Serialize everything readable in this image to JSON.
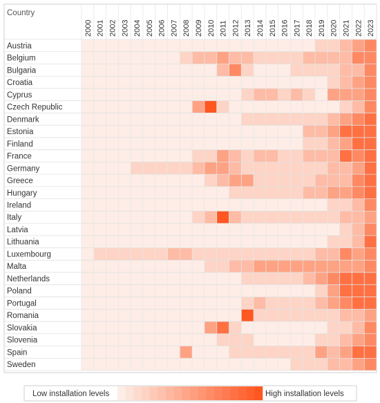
{
  "chart_data": {
    "type": "heatmap",
    "row_header": "Country",
    "columns": [
      "2000",
      "2001",
      "2002",
      "2003",
      "2004",
      "2005",
      "2006",
      "2007",
      "2008",
      "2009",
      "2010",
      "2011",
      "2012",
      "2013",
      "2014",
      "2015",
      "2016",
      "2017",
      "2018",
      "2019",
      "2020",
      "2021",
      "2022",
      "2023"
    ],
    "rows": [
      "Austria",
      "Belgium",
      "Bulgaria",
      "Croatia",
      "Cyprus",
      "Czech Republic",
      "Denmark",
      "Estonia",
      "Finland",
      "France",
      "Germany",
      "Greece",
      "Hungary",
      "Ireland",
      "Italy",
      "Latvia",
      "Lithuania",
      "Luxembourg",
      "Malta",
      "Netherlands",
      "Poland",
      "Portugal",
      "Romania",
      "Slovakia",
      "Slovenia",
      "Spain",
      "Sweden"
    ],
    "values": [
      [
        0,
        0,
        0,
        0,
        0,
        0,
        0,
        0,
        0,
        0,
        0,
        0,
        0,
        0,
        0,
        0,
        0,
        0,
        0,
        1,
        1,
        2,
        3,
        4
      ],
      [
        0,
        0,
        0,
        0,
        0,
        0,
        0,
        0,
        1,
        2,
        2,
        3,
        2,
        2,
        1,
        1,
        1,
        1,
        2,
        2,
        2,
        2,
        4,
        4
      ],
      [
        0,
        0,
        0,
        0,
        0,
        0,
        0,
        0,
        0,
        0,
        0,
        2,
        4,
        1,
        0,
        0,
        0,
        1,
        1,
        1,
        1,
        2,
        2,
        4
      ],
      [
        0,
        0,
        0,
        0,
        0,
        0,
        0,
        0,
        0,
        0,
        0,
        0,
        0,
        0,
        0,
        0,
        0,
        0,
        0,
        0,
        1,
        2,
        3,
        4
      ],
      [
        0,
        0,
        0,
        0,
        0,
        0,
        0,
        0,
        0,
        0,
        0,
        0,
        0,
        1,
        2,
        2,
        1,
        2,
        1,
        0,
        3,
        3,
        3,
        4
      ],
      [
        0,
        0,
        0,
        0,
        0,
        0,
        0,
        0,
        0,
        3,
        6,
        1,
        0,
        0,
        0,
        0,
        0,
        0,
        0,
        0,
        0,
        1,
        2,
        4
      ],
      [
        0,
        0,
        0,
        0,
        0,
        0,
        0,
        0,
        0,
        0,
        0,
        0,
        0,
        1,
        1,
        1,
        1,
        1,
        1,
        1,
        2,
        3,
        4,
        5
      ],
      [
        0,
        0,
        0,
        0,
        0,
        0,
        0,
        0,
        0,
        0,
        0,
        0,
        0,
        0,
        0,
        0,
        0,
        0,
        2,
        2,
        3,
        5,
        5,
        5
      ],
      [
        0,
        0,
        0,
        0,
        0,
        0,
        0,
        0,
        0,
        0,
        0,
        0,
        0,
        0,
        0,
        0,
        0,
        0,
        1,
        1,
        2,
        3,
        5,
        5
      ],
      [
        0,
        0,
        0,
        0,
        0,
        0,
        0,
        0,
        0,
        1,
        1,
        3,
        2,
        1,
        2,
        2,
        1,
        1,
        2,
        2,
        2,
        5,
        4,
        5
      ],
      [
        0,
        0,
        0,
        0,
        1,
        1,
        1,
        1,
        1,
        2,
        3,
        3,
        2,
        1,
        1,
        1,
        1,
        1,
        1,
        1,
        2,
        2,
        3,
        5
      ],
      [
        0,
        0,
        0,
        0,
        0,
        0,
        0,
        0,
        0,
        0,
        1,
        2,
        3,
        3,
        1,
        1,
        1,
        1,
        1,
        2,
        2,
        2,
        4,
        5
      ],
      [
        0,
        0,
        0,
        0,
        0,
        0,
        0,
        0,
        0,
        0,
        0,
        0,
        1,
        1,
        1,
        1,
        1,
        1,
        2,
        2,
        3,
        3,
        4,
        5
      ],
      [
        0,
        0,
        0,
        0,
        0,
        0,
        0,
        0,
        0,
        0,
        0,
        0,
        0,
        0,
        0,
        0,
        0,
        0,
        0,
        0,
        1,
        1,
        2,
        4
      ],
      [
        0,
        0,
        0,
        0,
        0,
        0,
        0,
        0,
        0,
        1,
        2,
        6,
        2,
        1,
        1,
        1,
        1,
        1,
        1,
        1,
        1,
        2,
        2,
        3
      ],
      [
        0,
        0,
        0,
        0,
        0,
        0,
        0,
        0,
        0,
        0,
        0,
        0,
        0,
        0,
        0,
        0,
        0,
        0,
        0,
        0,
        0,
        1,
        2,
        4
      ],
      [
        0,
        0,
        0,
        0,
        0,
        0,
        0,
        0,
        0,
        0,
        0,
        0,
        0,
        0,
        0,
        0,
        0,
        0,
        0,
        0,
        1,
        1,
        2,
        5
      ],
      [
        0,
        1,
        1,
        1,
        1,
        1,
        1,
        2,
        2,
        1,
        1,
        1,
        1,
        1,
        1,
        1,
        1,
        1,
        1,
        2,
        2,
        4,
        3,
        4
      ],
      [
        0,
        0,
        0,
        0,
        0,
        0,
        0,
        0,
        0,
        0,
        1,
        1,
        2,
        2,
        3,
        3,
        3,
        3,
        3,
        3,
        3,
        3,
        3,
        4
      ],
      [
        0,
        0,
        0,
        0,
        0,
        0,
        0,
        0,
        0,
        0,
        0,
        0,
        0,
        1,
        1,
        1,
        1,
        1,
        2,
        3,
        4,
        5,
        5,
        5
      ],
      [
        0,
        0,
        0,
        0,
        0,
        0,
        0,
        0,
        0,
        0,
        0,
        0,
        0,
        0,
        0,
        0,
        0,
        0,
        0,
        1,
        3,
        5,
        5,
        5
      ],
      [
        0,
        0,
        0,
        0,
        0,
        0,
        0,
        0,
        0,
        0,
        0,
        0,
        0,
        1,
        2,
        1,
        1,
        1,
        1,
        2,
        3,
        4,
        5,
        5
      ],
      [
        0,
        0,
        0,
        0,
        0,
        0,
        0,
        0,
        0,
        0,
        0,
        0,
        0,
        6,
        1,
        1,
        1,
        1,
        1,
        1,
        1,
        2,
        2,
        3
      ],
      [
        0,
        0,
        0,
        0,
        0,
        0,
        0,
        0,
        0,
        0,
        3,
        5,
        1,
        0,
        0,
        0,
        0,
        0,
        0,
        0,
        1,
        1,
        2,
        4
      ],
      [
        0,
        0,
        0,
        0,
        0,
        0,
        0,
        0,
        0,
        0,
        0,
        1,
        1,
        1,
        0,
        0,
        0,
        0,
        0,
        1,
        1,
        2,
        3,
        4
      ],
      [
        0,
        0,
        0,
        0,
        0,
        0,
        0,
        0,
        3,
        0,
        0,
        0,
        1,
        1,
        1,
        1,
        1,
        1,
        1,
        3,
        2,
        3,
        5,
        5
      ],
      [
        0,
        0,
        0,
        0,
        0,
        0,
        0,
        0,
        0,
        0,
        0,
        0,
        0,
        0,
        0,
        0,
        0,
        1,
        1,
        1,
        2,
        2,
        3,
        4
      ]
    ],
    "scale_min": 0,
    "scale_max": 6,
    "color_low": "#fdede6",
    "color_high": "#ff5722",
    "legend": {
      "low_label": "Low installation levels",
      "high_label": "High installation levels",
      "steps": 18,
      "placement": "bottom"
    }
  }
}
